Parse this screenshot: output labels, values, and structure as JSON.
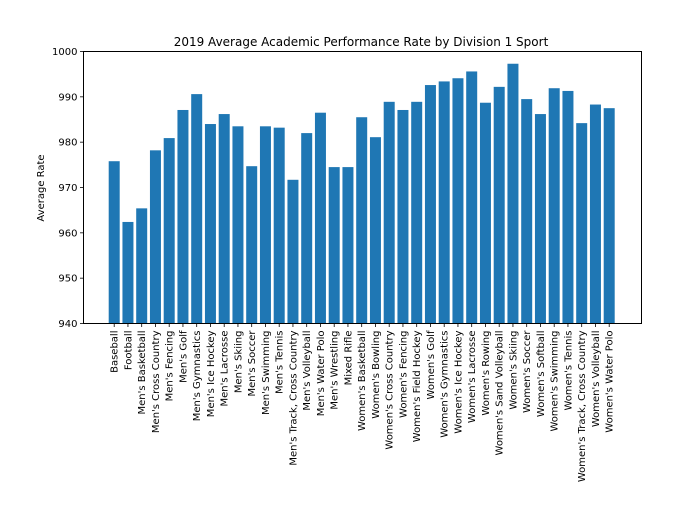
{
  "chart_data": {
    "type": "bar",
    "title": "2019 Average Academic Performance Rate by Division 1 Sport",
    "xlabel": "",
    "ylabel": "Average Rate",
    "ylim": [
      940,
      1000
    ],
    "yticks": [
      "940",
      "950",
      "960",
      "970",
      "980",
      "990",
      "1000"
    ],
    "grid": false,
    "bar_color": "#1f77b4",
    "categories": [
      "Baseball",
      "Football",
      "Men's Basketball",
      "Men's Cross Country",
      "Men's Fencing",
      "Men's Golf",
      "Men's Gymnastics",
      "Men's Ice Hockey",
      "Men's Lacrosse",
      "Men's Skiing",
      "Men's Soccer",
      "Men's Swimming",
      "Men's Tennis",
      "Men's Track, Cross Country",
      "Men's Volleyball",
      "Men's Water Polo",
      "Men's Wrestling",
      "Mixed Rifle",
      "Women's Basketball",
      "Women's Bowling",
      "Women's Cross Country",
      "Women's Fencing",
      "Women's Field Hockey",
      "Women's Golf",
      "Women's Gymnastics",
      "Women's Ice Hockey",
      "Women's Lacrosse",
      "Women's Rowing",
      "Women's Sand Volleyball",
      "Women's Skiing",
      "Women's Soccer",
      "Women's Softball",
      "Women's Swimming",
      "Women's Tennis",
      "Women's Track, Cross Country",
      "Women's Volleyball",
      "Women's Water Polo"
    ],
    "values": [
      975.8,
      962.4,
      965.4,
      978.2,
      980.9,
      987.1,
      990.6,
      984.0,
      986.2,
      983.5,
      974.7,
      983.5,
      983.2,
      971.7,
      982.0,
      986.5,
      974.5,
      974.5,
      985.5,
      981.1,
      988.9,
      987.1,
      988.9,
      992.6,
      993.4,
      994.1,
      995.6,
      988.7,
      992.2,
      997.3,
      989.5,
      986.2,
      991.9,
      991.3,
      984.2,
      988.3,
      987.5
    ]
  }
}
